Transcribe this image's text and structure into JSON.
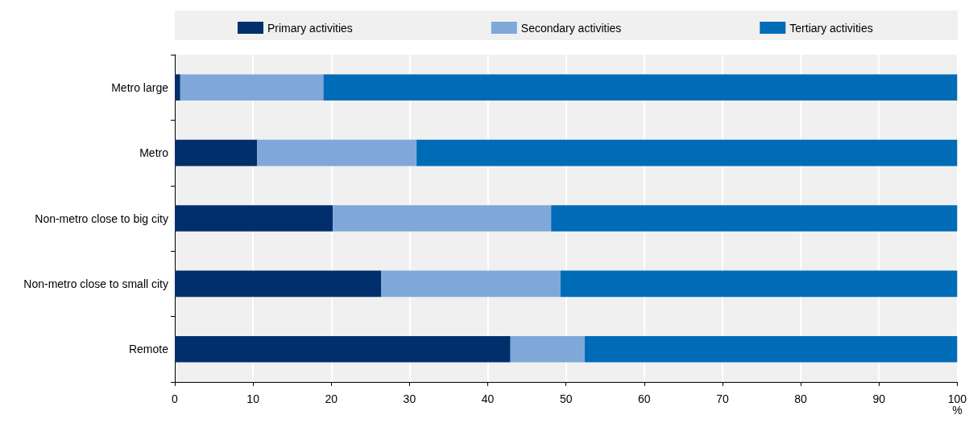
{
  "chart_data": {
    "type": "bar",
    "orientation": "horizontal",
    "stacked": true,
    "categories": [
      "Metro large",
      "Metro",
      "Non-metro close to big city",
      "Non-metro close to small city",
      "Remote"
    ],
    "series": [
      {
        "name": "Primary activities",
        "color": "#002f6c",
        "values": [
          0.7,
          10.5,
          20.2,
          26.4,
          42.9
        ]
      },
      {
        "name": "Secondary activities",
        "color": "#7fa8d9",
        "values": [
          18.3,
          20.4,
          27.9,
          22.9,
          9.5
        ]
      },
      {
        "name": "Tertiary activities",
        "color": "#006bb6",
        "values": [
          81.0,
          69.1,
          51.9,
          50.7,
          47.6
        ]
      }
    ],
    "xlabel": "%",
    "xlim": [
      0,
      100
    ],
    "xticks": [
      0,
      10,
      20,
      30,
      40,
      50,
      60,
      70,
      80,
      90,
      100
    ],
    "grid": "x",
    "legend": "top"
  }
}
